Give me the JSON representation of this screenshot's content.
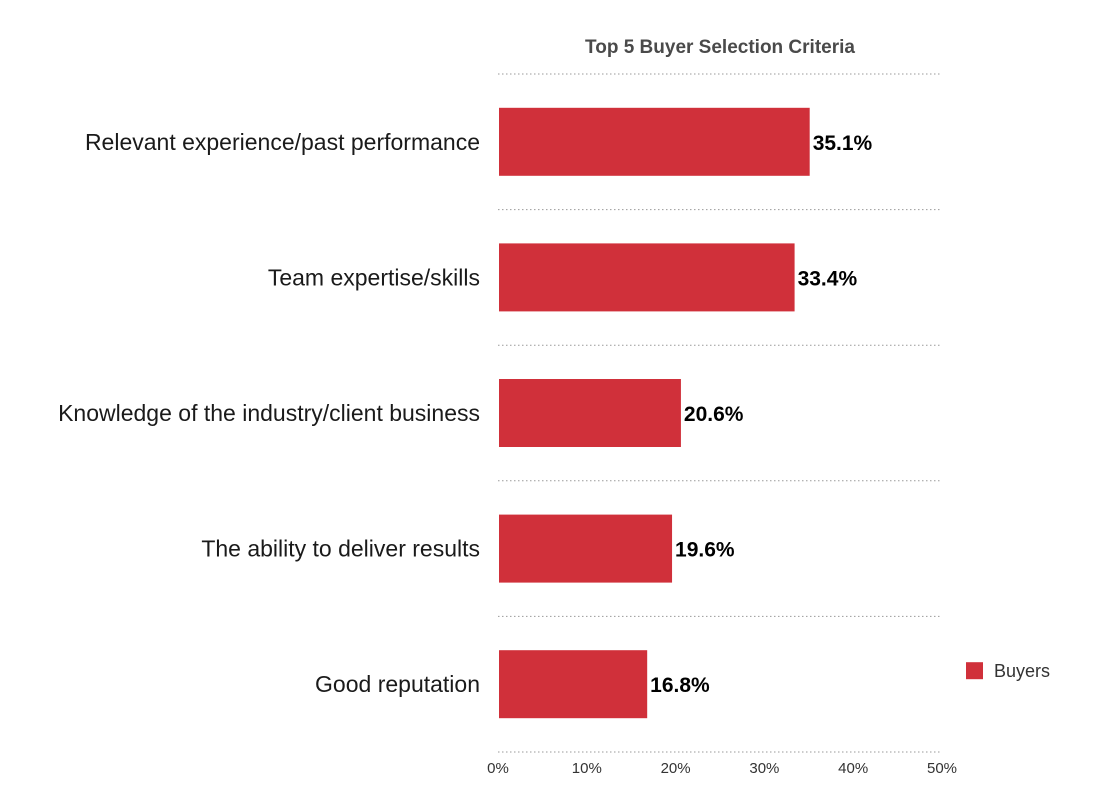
{
  "chart_data": {
    "type": "bar",
    "orientation": "horizontal",
    "title": "Top 5 Buyer Selection Criteria",
    "categories": [
      "Relevant experience/past performance",
      "Team expertise/skills",
      "Knowledge of the industry/client business",
      "The ability to deliver results",
      "Good reputation"
    ],
    "series": [
      {
        "name": "Buyers",
        "values": [
          35.1,
          33.4,
          20.6,
          19.6,
          16.8
        ],
        "color": "#d0303a"
      }
    ],
    "value_labels": [
      "35.1%",
      "33.4%",
      "20.6%",
      "19.6%",
      "16.8%"
    ],
    "xlim": [
      0,
      50
    ],
    "x_ticks": [
      0,
      10,
      20,
      30,
      40,
      50
    ],
    "x_tick_labels": [
      "0%",
      "10%",
      "20%",
      "30%",
      "40%",
      "50%"
    ],
    "xlabel": "",
    "ylabel": "",
    "grid": "horizontal dotted separators",
    "legend_position": "right"
  }
}
